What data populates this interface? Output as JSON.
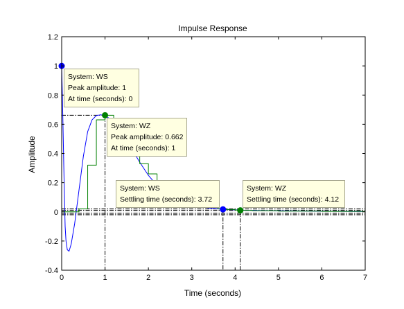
{
  "chart_data": {
    "type": "line",
    "title": "Impulse Response",
    "xlabel": "Time (seconds)",
    "ylabel": "Amplitude",
    "xlim": [
      0,
      7
    ],
    "ylim": [
      -0.4,
      1.2
    ],
    "xticks": [
      "0",
      "1",
      "2",
      "3",
      "4",
      "5",
      "6",
      "7"
    ],
    "yticks": [
      "-0.4",
      "-0.2",
      "0",
      "0.2",
      "0.4",
      "0.6",
      "0.8",
      "1",
      "1.2"
    ],
    "grid": false,
    "series": [
      {
        "name": "WS",
        "style": "continuous",
        "color": "#0000ff",
        "points": [
          [
            0,
            1.0
          ],
          [
            0.02,
            0.75
          ],
          [
            0.04,
            0.45
          ],
          [
            0.06,
            0.15
          ],
          [
            0.08,
            -0.1
          ],
          [
            0.1,
            -0.2
          ],
          [
            0.13,
            -0.26
          ],
          [
            0.17,
            -0.27
          ],
          [
            0.22,
            -0.22
          ],
          [
            0.3,
            -0.08
          ],
          [
            0.4,
            0.15
          ],
          [
            0.5,
            0.38
          ],
          [
            0.6,
            0.55
          ],
          [
            0.7,
            0.63
          ],
          [
            0.8,
            0.66
          ],
          [
            0.9,
            0.665
          ],
          [
            1.0,
            0.66
          ],
          [
            1.2,
            0.62
          ],
          [
            1.4,
            0.54
          ],
          [
            1.6,
            0.44
          ],
          [
            1.8,
            0.34
          ],
          [
            2.0,
            0.25
          ],
          [
            2.2,
            0.18
          ],
          [
            2.5,
            0.11
          ],
          [
            2.8,
            0.065
          ],
          [
            3.1,
            0.04
          ],
          [
            3.4,
            0.026
          ],
          [
            3.72,
            0.017
          ],
          [
            4.2,
            0.011
          ],
          [
            5,
            0.007
          ],
          [
            6,
            0.004
          ],
          [
            7,
            0.002
          ]
        ]
      },
      {
        "name": "WZ",
        "style": "step",
        "color": "#008000",
        "points": [
          [
            0,
            0
          ],
          [
            0.2,
            0
          ],
          [
            0.4,
            0.02
          ],
          [
            0.6,
            0.32
          ],
          [
            0.8,
            0.63
          ],
          [
            1.0,
            0.662
          ],
          [
            1.2,
            0.62
          ],
          [
            1.4,
            0.53
          ],
          [
            1.6,
            0.42
          ],
          [
            1.8,
            0.33
          ],
          [
            2.0,
            0.26
          ],
          [
            2.2,
            0.19
          ],
          [
            2.4,
            0.14
          ],
          [
            2.6,
            0.1
          ],
          [
            2.8,
            0.075
          ],
          [
            3.0,
            0.055
          ],
          [
            3.2,
            0.04
          ],
          [
            3.4,
            0.03
          ],
          [
            3.6,
            0.022
          ],
          [
            3.8,
            0.016
          ],
          [
            4.0,
            0.012
          ],
          [
            4.12,
            0.01
          ],
          [
            4.4,
            0.008
          ],
          [
            5,
            0.005
          ],
          [
            6,
            0.003
          ],
          [
            7,
            0.002
          ]
        ]
      }
    ],
    "settling_bands": [
      0.02,
      0.01,
      -0.01,
      -0.02
    ],
    "markers": [
      {
        "series": "WS",
        "color": "#0000ff",
        "x": 0,
        "y": 1.0,
        "guide_h": false,
        "guide_v": false
      },
      {
        "series": "WZ",
        "color": "#008000",
        "x": 1,
        "y": 0.662,
        "guide_h": true,
        "guide_v": true
      },
      {
        "series": "WS",
        "color": "#0000ff",
        "x": 3.72,
        "y": 0.017,
        "guide_h": false,
        "guide_v": true
      },
      {
        "series": "WZ",
        "color": "#008000",
        "x": 4.12,
        "y": 0.01,
        "guide_h": false,
        "guide_v": true
      }
    ],
    "datatips": [
      {
        "lines": [
          "System: WS",
          "Peak amplitude: 1",
          "At time (seconds): 0"
        ]
      },
      {
        "lines": [
          "System: WZ",
          "Peak amplitude: 0.662",
          "At time (seconds): 1"
        ]
      },
      {
        "lines": [
          "System: WS",
          "Settling time (seconds): 3.72"
        ]
      },
      {
        "lines": [
          "System: WZ",
          "Settling time (seconds): 4.12"
        ]
      }
    ]
  }
}
